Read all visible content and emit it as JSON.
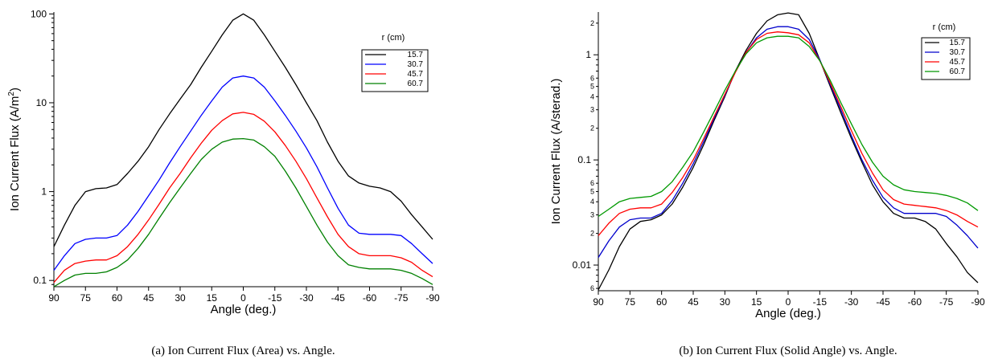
{
  "chart_data": [
    {
      "type": "line",
      "caption": "(a) Ion Current Flux (Area) vs. Angle.",
      "xlabel": "Angle (deg.)",
      "ylabel": "Ion Current Flux (A/m",
      "ylabel_sup": "2",
      "ylabel_tail": ")",
      "xlim": [
        90,
        -90
      ],
      "ylim": [
        0.085,
        105
      ],
      "yscale": "log",
      "x_ticks": [
        "90",
        "75",
        "60",
        "45",
        "30",
        "15",
        "0",
        "-15",
        "-30",
        "-45",
        "-60",
        "-75",
        "-90"
      ],
      "y_ticks": [
        "0.1",
        "1",
        "10",
        "100"
      ],
      "legend_title": "r (cm)",
      "x": [
        90,
        85,
        80,
        75,
        70,
        65,
        60,
        55,
        50,
        45,
        40,
        35,
        30,
        25,
        20,
        15,
        10,
        5,
        0,
        -5,
        -10,
        -15,
        -20,
        -25,
        -30,
        -35,
        -40,
        -45,
        -50,
        -55,
        -60,
        -65,
        -70,
        -75,
        -80,
        -85,
        -90
      ],
      "series": [
        {
          "name": "15.7",
          "color": "#000000",
          "values": [
            0.24,
            0.42,
            0.7,
            1.0,
            1.08,
            1.1,
            1.2,
            1.6,
            2.2,
            3.2,
            5.0,
            7.5,
            11,
            16,
            25,
            38,
            58,
            85,
            100,
            85,
            58,
            38,
            25,
            16,
            10,
            6.3,
            3.6,
            2.2,
            1.5,
            1.25,
            1.15,
            1.1,
            1.0,
            0.78,
            0.55,
            0.4,
            0.29
          ]
        },
        {
          "name": "30.7",
          "color": "#0000ff",
          "values": [
            0.13,
            0.19,
            0.26,
            0.29,
            0.3,
            0.3,
            0.32,
            0.42,
            0.6,
            0.9,
            1.35,
            2.1,
            3.2,
            4.8,
            7.2,
            10.5,
            15,
            19,
            20,
            19,
            15,
            10.5,
            7.2,
            4.8,
            3.1,
            1.9,
            1.1,
            0.65,
            0.42,
            0.34,
            0.33,
            0.33,
            0.33,
            0.32,
            0.26,
            0.2,
            0.155
          ]
        },
        {
          "name": "45.7",
          "color": "#ff0000",
          "values": [
            0.095,
            0.13,
            0.155,
            0.165,
            0.17,
            0.17,
            0.19,
            0.24,
            0.33,
            0.48,
            0.72,
            1.1,
            1.6,
            2.4,
            3.5,
            4.9,
            6.3,
            7.5,
            7.8,
            7.4,
            6.2,
            4.7,
            3.3,
            2.2,
            1.4,
            0.85,
            0.52,
            0.33,
            0.24,
            0.2,
            0.19,
            0.19,
            0.19,
            0.18,
            0.16,
            0.13,
            0.11
          ]
        },
        {
          "name": "60.7",
          "color": "#008000",
          "values": [
            0.085,
            0.1,
            0.115,
            0.12,
            0.12,
            0.125,
            0.14,
            0.17,
            0.23,
            0.33,
            0.5,
            0.75,
            1.1,
            1.6,
            2.3,
            3.0,
            3.6,
            3.9,
            3.95,
            3.8,
            3.2,
            2.5,
            1.7,
            1.1,
            0.68,
            0.42,
            0.27,
            0.19,
            0.15,
            0.14,
            0.135,
            0.135,
            0.135,
            0.13,
            0.12,
            0.105,
            0.09
          ]
        }
      ]
    },
    {
      "type": "line",
      "caption": "(b) Ion Current Flux (Solid Angle) vs. Angle.",
      "xlabel": "Angle (deg.)",
      "ylabel": "Ion Current Flux (A/sterad.)",
      "xlim": [
        90,
        -90
      ],
      "ylim": [
        0.0057,
        2.55
      ],
      "yscale": "log",
      "x_ticks": [
        "90",
        "75",
        "60",
        "45",
        "30",
        "15",
        "0",
        "-15",
        "-30",
        "-45",
        "-60",
        "-75",
        "-90"
      ],
      "y_ticks": [
        "0.01",
        "0.1",
        "1"
      ],
      "y_minor_ticks": [
        "6",
        "2",
        "3",
        "4",
        "5",
        "6",
        "2",
        "3",
        "4",
        "5",
        "6",
        "2"
      ],
      "legend_title": "r (cm)",
      "x": [
        90,
        85,
        80,
        75,
        70,
        65,
        60,
        55,
        50,
        45,
        40,
        35,
        30,
        25,
        20,
        15,
        10,
        5,
        0,
        -5,
        -10,
        -15,
        -20,
        -25,
        -30,
        -35,
        -40,
        -45,
        -50,
        -55,
        -60,
        -65,
        -70,
        -75,
        -80,
        -85,
        -90
      ],
      "series": [
        {
          "name": "15.7",
          "color": "#000000",
          "values": [
            0.0058,
            0.009,
            0.015,
            0.022,
            0.026,
            0.027,
            0.03,
            0.038,
            0.055,
            0.085,
            0.14,
            0.24,
            0.4,
            0.7,
            1.1,
            1.6,
            2.1,
            2.4,
            2.5,
            2.4,
            1.6,
            0.9,
            0.5,
            0.28,
            0.16,
            0.095,
            0.058,
            0.04,
            0.031,
            0.028,
            0.028,
            0.026,
            0.022,
            0.016,
            0.012,
            0.0085,
            0.0068
          ]
        },
        {
          "name": "30.7",
          "color": "#0000cc",
          "values": [
            0.0118,
            0.017,
            0.023,
            0.027,
            0.028,
            0.028,
            0.031,
            0.041,
            0.06,
            0.092,
            0.15,
            0.25,
            0.41,
            0.69,
            1.05,
            1.45,
            1.75,
            1.85,
            1.85,
            1.75,
            1.4,
            0.9,
            0.52,
            0.3,
            0.17,
            0.1,
            0.064,
            0.044,
            0.035,
            0.031,
            0.031,
            0.031,
            0.031,
            0.029,
            0.024,
            0.019,
            0.0145
          ]
        },
        {
          "name": "45.7",
          "color": "#ff0000",
          "values": [
            0.019,
            0.025,
            0.031,
            0.034,
            0.035,
            0.035,
            0.038,
            0.049,
            0.068,
            0.1,
            0.16,
            0.26,
            0.42,
            0.68,
            1.05,
            1.4,
            1.6,
            1.65,
            1.62,
            1.55,
            1.3,
            0.88,
            0.54,
            0.32,
            0.19,
            0.115,
            0.075,
            0.052,
            0.042,
            0.038,
            0.037,
            0.036,
            0.035,
            0.033,
            0.03,
            0.026,
            0.023
          ]
        },
        {
          "name": "60.7",
          "color": "#009900",
          "values": [
            0.029,
            0.034,
            0.04,
            0.043,
            0.044,
            0.045,
            0.05,
            0.062,
            0.085,
            0.12,
            0.185,
            0.29,
            0.46,
            0.7,
            1.02,
            1.3,
            1.45,
            1.5,
            1.5,
            1.45,
            1.2,
            0.88,
            0.57,
            0.35,
            0.22,
            0.14,
            0.095,
            0.07,
            0.058,
            0.052,
            0.05,
            0.049,
            0.048,
            0.046,
            0.043,
            0.039,
            0.033
          ]
        }
      ]
    }
  ]
}
